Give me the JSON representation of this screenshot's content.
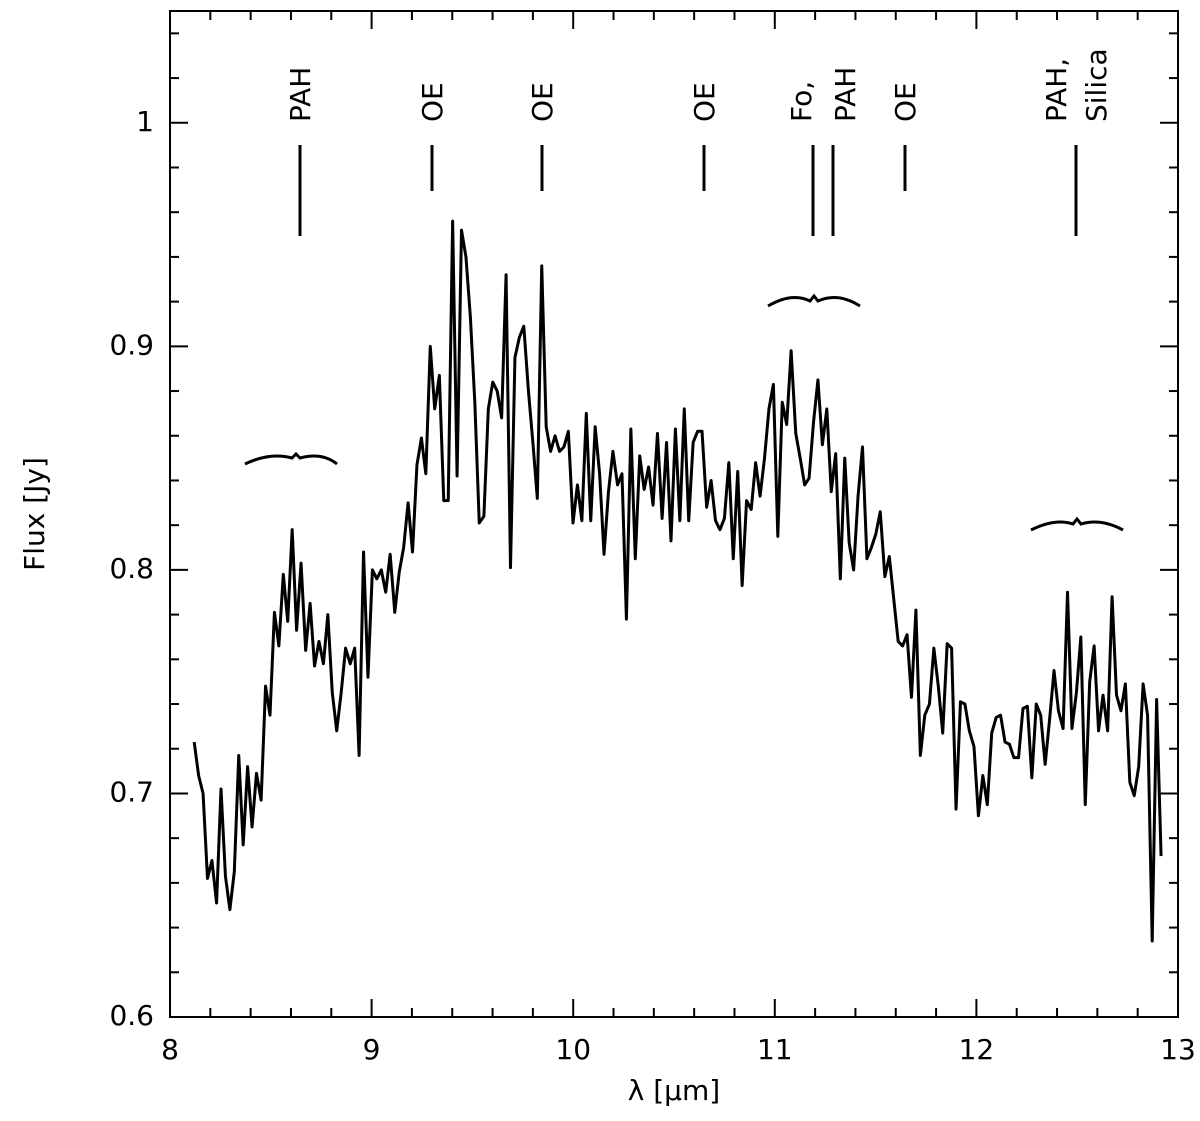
{
  "chart_data": {
    "type": "line",
    "xlabel": "λ [μm]",
    "ylabel": "Flux [Jy]",
    "annotations": [
      "PAH",
      "OE",
      "OE",
      "OE",
      "Fo,",
      "PAH",
      "OE",
      "PAH,",
      "Silica"
    ],
    "xlim": [
      8,
      13
    ],
    "xticks": [
      8,
      9,
      10,
      11,
      12,
      13
    ],
    "xminorticks": [
      8.2,
      8.4,
      8.6,
      8.8,
      9.2,
      9.4,
      9.6,
      9.8,
      10.2,
      10.4,
      10.6,
      10.8,
      11.2,
      11.4,
      11.6,
      11.8,
      12.2,
      12.4,
      12.6,
      12.8
    ],
    "ylim": [
      0.6,
      1.05
    ],
    "yticks": [
      0.6,
      0.7,
      0.8,
      0.9,
      1
    ],
    "yminorticks": [
      0.62,
      0.64,
      0.66,
      0.68,
      0.72,
      0.74,
      0.76,
      0.78,
      0.82,
      0.84,
      0.86,
      0.88,
      0.92,
      0.94,
      0.96,
      0.98,
      1.02,
      1.04
    ],
    "series": [
      {
        "color": "#000000",
        "x": [
          8.12,
          8.142,
          8.164,
          8.186,
          8.208,
          8.231,
          8.253,
          8.275,
          8.297,
          8.319,
          8.341,
          8.363,
          8.385,
          8.407,
          8.429,
          8.452,
          8.474,
          8.496,
          8.518,
          8.54,
          8.562,
          8.584,
          8.606,
          8.628,
          8.65,
          8.673,
          8.695,
          8.717,
          8.739,
          8.761,
          8.783,
          8.805,
          8.827,
          8.849,
          8.871,
          8.894,
          8.916,
          8.938,
          8.96,
          8.982,
          9.004,
          9.026,
          9.048,
          9.07,
          9.092,
          9.115,
          9.137,
          9.159,
          9.181,
          9.203,
          9.225,
          9.247,
          9.269,
          9.291,
          9.313,
          9.336,
          9.358,
          9.38,
          9.402,
          9.424,
          9.446,
          9.468,
          9.49,
          9.512,
          9.534,
          9.557,
          9.579,
          9.601,
          9.623,
          9.645,
          9.667,
          9.689,
          9.711,
          9.733,
          9.755,
          9.778,
          9.8,
          9.822,
          9.844,
          9.866,
          9.888,
          9.91,
          9.932,
          9.954,
          9.976,
          9.999,
          10.021,
          10.043,
          10.065,
          10.087,
          10.109,
          10.131,
          10.153,
          10.175,
          10.197,
          10.22,
          10.242,
          10.264,
          10.286,
          10.308,
          10.33,
          10.352,
          10.374,
          10.396,
          10.418,
          10.441,
          10.463,
          10.485,
          10.507,
          10.529,
          10.551,
          10.573,
          10.595,
          10.617,
          10.639,
          10.662,
          10.684,
          10.706,
          10.728,
          10.75,
          10.772,
          10.794,
          10.816,
          10.838,
          10.86,
          10.883,
          10.905,
          10.927,
          10.949,
          10.971,
          10.993,
          11.015,
          11.037,
          11.059,
          11.081,
          11.104,
          11.126,
          11.148,
          11.17,
          11.192,
          11.214,
          11.236,
          11.258,
          11.28,
          11.302,
          11.325,
          11.347,
          11.369,
          11.391,
          11.413,
          11.435,
          11.457,
          11.479,
          11.501,
          11.523,
          11.546,
          11.568,
          11.59,
          11.612,
          11.634,
          11.656,
          11.678,
          11.7,
          11.722,
          11.744,
          11.767,
          11.789,
          11.811,
          11.833,
          11.855,
          11.877,
          11.899,
          11.921,
          11.943,
          11.965,
          11.988,
          12.01,
          12.032,
          12.054,
          12.076,
          12.098,
          12.12,
          12.142,
          12.164,
          12.186,
          12.209,
          12.231,
          12.253,
          12.275,
          12.297,
          12.319,
          12.341,
          12.363,
          12.385,
          12.407,
          12.43,
          12.452,
          12.474,
          12.496,
          12.518,
          12.54,
          12.562,
          12.584,
          12.606,
          12.628,
          12.651,
          12.673,
          12.695,
          12.717,
          12.739,
          12.761,
          12.783,
          12.805,
          12.827,
          12.849,
          12.872,
          12.894,
          12.916
        ],
        "values": [
          0.723,
          0.708,
          0.7,
          0.662,
          0.67,
          0.651,
          0.702,
          0.663,
          0.648,
          0.665,
          0.717,
          0.677,
          0.712,
          0.685,
          0.709,
          0.697,
          0.748,
          0.735,
          0.781,
          0.766,
          0.798,
          0.777,
          0.818,
          0.773,
          0.803,
          0.764,
          0.785,
          0.757,
          0.768,
          0.758,
          0.78,
          0.745,
          0.728,
          0.745,
          0.765,
          0.758,
          0.765,
          0.717,
          0.808,
          0.752,
          0.8,
          0.796,
          0.8,
          0.79,
          0.807,
          0.781,
          0.799,
          0.81,
          0.83,
          0.808,
          0.847,
          0.859,
          0.843,
          0.9,
          0.872,
          0.887,
          0.831,
          0.831,
          0.956,
          0.842,
          0.952,
          0.94,
          0.913,
          0.875,
          0.821,
          0.824,
          0.872,
          0.884,
          0.88,
          0.868,
          0.932,
          0.801,
          0.895,
          0.904,
          0.909,
          0.88,
          0.857,
          0.832,
          0.936,
          0.864,
          0.853,
          0.86,
          0.853,
          0.855,
          0.862,
          0.821,
          0.838,
          0.822,
          0.87,
          0.822,
          0.864,
          0.843,
          0.807,
          0.835,
          0.853,
          0.838,
          0.843,
          0.778,
          0.863,
          0.805,
          0.851,
          0.836,
          0.846,
          0.829,
          0.861,
          0.823,
          0.857,
          0.813,
          0.863,
          0.822,
          0.872,
          0.822,
          0.857,
          0.862,
          0.862,
          0.828,
          0.84,
          0.822,
          0.818,
          0.823,
          0.848,
          0.805,
          0.844,
          0.793,
          0.831,
          0.827,
          0.848,
          0.833,
          0.85,
          0.872,
          0.883,
          0.815,
          0.875,
          0.865,
          0.898,
          0.861,
          0.85,
          0.838,
          0.841,
          0.866,
          0.885,
          0.856,
          0.872,
          0.835,
          0.852,
          0.796,
          0.85,
          0.812,
          0.8,
          0.833,
          0.855,
          0.805,
          0.81,
          0.816,
          0.826,
          0.797,
          0.806,
          0.787,
          0.768,
          0.766,
          0.771,
          0.743,
          0.782,
          0.717,
          0.735,
          0.74,
          0.765,
          0.748,
          0.727,
          0.767,
          0.765,
          0.693,
          0.741,
          0.74,
          0.728,
          0.721,
          0.69,
          0.708,
          0.695,
          0.727,
          0.734,
          0.735,
          0.723,
          0.722,
          0.716,
          0.716,
          0.738,
          0.739,
          0.707,
          0.74,
          0.735,
          0.713,
          0.733,
          0.755,
          0.737,
          0.729,
          0.79,
          0.729,
          0.745,
          0.77,
          0.695,
          0.75,
          0.766,
          0.728,
          0.744,
          0.728,
          0.788,
          0.744,
          0.737,
          0.749,
          0.705,
          0.699,
          0.712,
          0.749,
          0.735,
          0.634,
          0.742,
          0.672
        ]
      }
    ]
  }
}
